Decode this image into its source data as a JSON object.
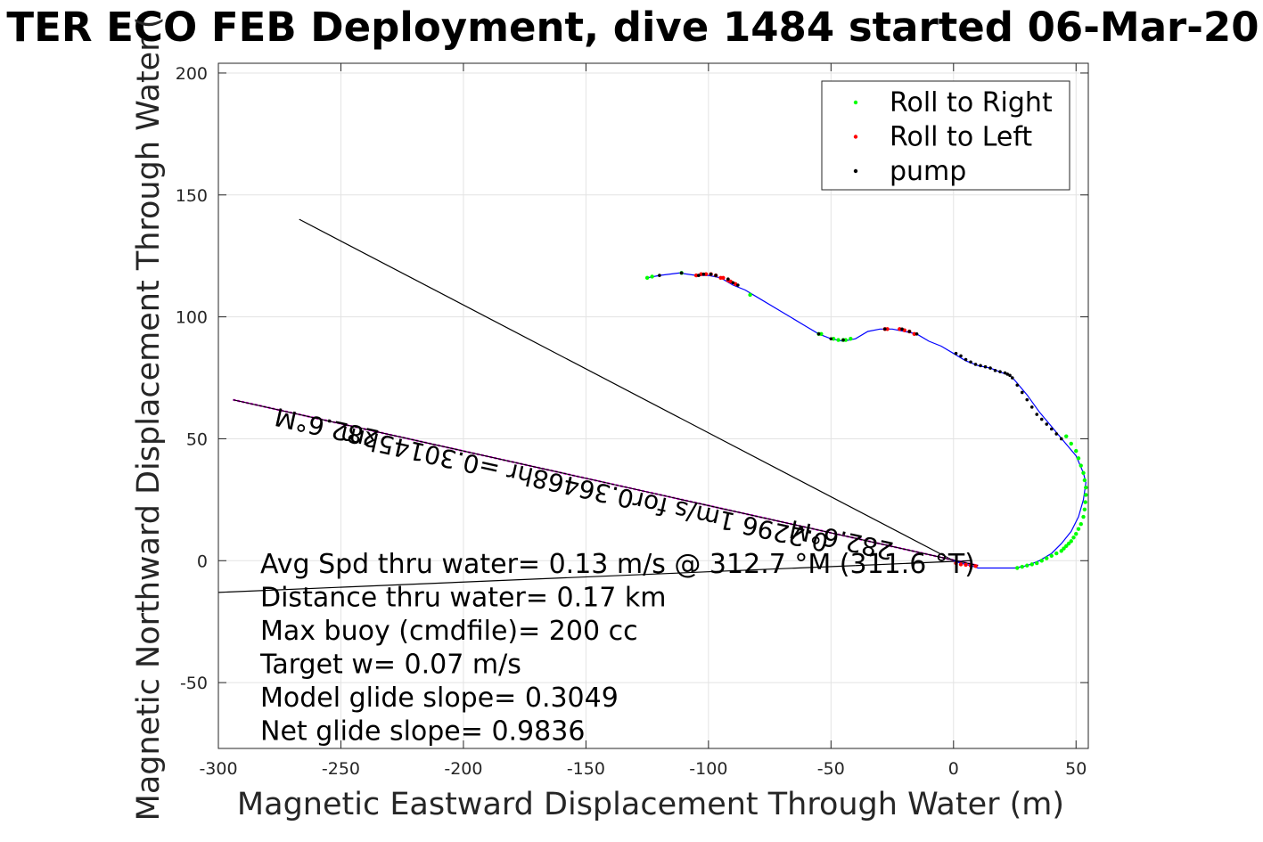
{
  "chart_data": {
    "type": "scatter",
    "title": "TER ECO FEB Deployment, dive 1484 started 06-Mar-20",
    "xlabel": "Magnetic Eastward Displacement Through Water (m)",
    "ylabel": "Magnetic Northward Displacement Through Water (",
    "xlim": [
      -300,
      55
    ],
    "ylim": [
      -77,
      204
    ],
    "xticks": [
      -300,
      -250,
      -200,
      -150,
      -100,
      -50,
      0,
      50
    ],
    "yticks": [
      -50,
      0,
      50,
      100,
      150,
      200
    ],
    "grid": true,
    "legend_position": "top-right",
    "legend": [
      {
        "name": "Roll to Right",
        "color": "#00ff00"
      },
      {
        "name": "Roll to Left",
        "color": "#ff0000"
      },
      {
        "name": "pump",
        "color": "#000000"
      }
    ],
    "track": {
      "color": "#0000ff",
      "x": [
        -125,
        -120,
        -112,
        -105,
        -100,
        -95,
        -90,
        -85,
        -80,
        -70,
        -60,
        -55,
        -50,
        -45,
        -40,
        -35,
        -30,
        -25,
        -20,
        -15,
        -10,
        -5,
        0,
        5,
        10,
        15,
        20,
        23,
        25,
        30,
        35,
        40,
        45,
        50,
        53,
        54,
        53,
        51,
        48,
        44,
        40,
        35,
        30,
        25,
        20,
        15,
        10,
        7,
        3,
        0
      ],
      "y": [
        116,
        117,
        118,
        117,
        117,
        116,
        113,
        111,
        108,
        102,
        96,
        93,
        91,
        90,
        91,
        94,
        95,
        95,
        94,
        93,
        90,
        88,
        85,
        82,
        80,
        79,
        77,
        76,
        74,
        68,
        61,
        55,
        49,
        43,
        36,
        32,
        25,
        18,
        12,
        7,
        3,
        0,
        -2,
        -3,
        -3,
        -3,
        -3,
        -2,
        -1,
        0
      ]
    },
    "roll_right": {
      "x": [
        -125,
        -123,
        -111,
        -83,
        -55,
        -54,
        -49,
        -47,
        -45,
        -44,
        -42,
        46,
        48,
        50,
        51,
        52,
        53,
        53.5,
        54,
        54,
        53.8,
        53.5,
        53,
        52,
        51,
        50,
        49,
        48,
        47,
        46,
        45,
        44,
        42,
        40,
        38,
        36,
        34,
        32,
        30,
        28,
        26
      ],
      "y": [
        116,
        116.5,
        118,
        109,
        93,
        93,
        91,
        90.5,
        90.5,
        90.5,
        91,
        51,
        48,
        45,
        42,
        39,
        36,
        33,
        30,
        27,
        24,
        21,
        18,
        15,
        13,
        11,
        9.5,
        8,
        7,
        6,
        5,
        4,
        3,
        2,
        1,
        0,
        -1,
        -1.5,
        -2,
        -2.5,
        -3
      ]
    },
    "roll_left": {
      "x": [
        -105,
        -103,
        -101,
        -99,
        -97,
        -95,
        -94,
        -92,
        -91,
        -89,
        -28,
        -27,
        -22,
        -20,
        -18,
        -16,
        1,
        3,
        5,
        7,
        9
      ],
      "y": [
        117,
        117.5,
        117.5,
        117.5,
        117,
        116,
        116,
        115,
        114.5,
        113.5,
        95,
        95,
        95,
        94.5,
        94,
        93,
        -1,
        -1.5,
        -1.7,
        -2,
        -2.2
      ]
    },
    "pump": {
      "x": [
        -120,
        -111,
        -104,
        -102,
        -99,
        -97,
        -92,
        -90,
        -88,
        -55,
        -50,
        -45,
        -28,
        -21,
        -18,
        -15,
        1,
        3,
        5,
        7,
        9,
        11,
        13,
        15,
        17,
        19,
        21,
        22,
        23,
        24,
        26,
        28,
        30,
        32,
        34,
        36,
        38,
        40,
        42,
        44
      ],
      "y": [
        117,
        118,
        117,
        117.5,
        117.5,
        117,
        115.5,
        114,
        113,
        93,
        91,
        90.5,
        95,
        95,
        94,
        93,
        85,
        84,
        82.5,
        81.5,
        80.5,
        80,
        79.5,
        79,
        78,
        77.5,
        77,
        76.5,
        76,
        75,
        72,
        69,
        66,
        63,
        60,
        58,
        56,
        54,
        52,
        50
      ]
    },
    "lines": [
      {
        "color": "#000000",
        "x": [
          -267,
          0
        ],
        "y": [
          140,
          0
        ]
      },
      {
        "color": "#000000",
        "x": [
          -300,
          -40
        ],
        "y": [
          -13,
          -2
        ]
      },
      {
        "color": "#000000",
        "x": [
          -40,
          7
        ],
        "y": [
          -2,
          0
        ]
      },
      {
        "color": "#ff00ff",
        "x": [
          -294,
          10
        ],
        "y": [
          66,
          -2
        ]
      },
      {
        "color": "#000000",
        "x": [
          -294,
          10
        ],
        "y": [
          66,
          -2
        ]
      }
    ],
    "annotations": [
      {
        "text": "282.6°M",
        "x": -255,
        "y": 58,
        "angle": 192.6
      },
      {
        "text": "0.2296 1m/s for0.36468hr =0.30145km",
        "x": -150,
        "y": 33,
        "angle": 192.6
      },
      {
        "text": "282.6°M",
        "x": -45,
        "y": 12,
        "angle": 192.6
      }
    ]
  },
  "stats": [
    "Avg Spd thru water=  0.13 m/s @ 312.7 °M (311.6 °T)",
    "Distance thru water=  0.17 km",
    "Max buoy (cmdfile)= 200 cc",
    "Target w= 0.07 m/s",
    "Model glide slope= 0.3049",
    "Net glide slope= 0.9836"
  ]
}
